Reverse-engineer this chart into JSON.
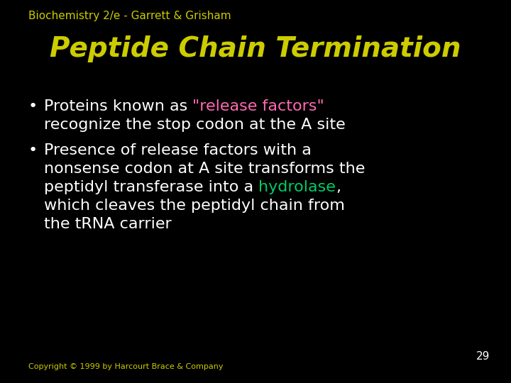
{
  "background_color": "#000000",
  "header_text": "Biochemistry 2/e - Garrett & Grisham",
  "header_color": "#cccc00",
  "header_fontsize": 11,
  "title_text": "Peptide Chain Termination",
  "title_color": "#cccc00",
  "title_fontsize": 28,
  "title_style": "italic",
  "bullet_color": "#ffffff",
  "bullet_fontsize": 16,
  "release_factors_color": "#ff69b4",
  "hydrolase_color": "#00cc66",
  "page_number": "29",
  "page_number_color": "#ffffff",
  "page_number_fontsize": 11,
  "copyright_text": "Copyright © 1999 by Harcourt Brace & Company",
  "copyright_color": "#cccc00",
  "copyright_fontsize": 8
}
